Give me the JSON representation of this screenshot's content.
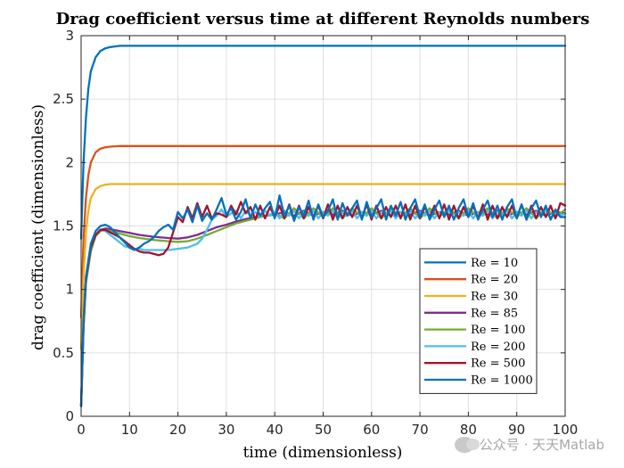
{
  "chart_data": {
    "type": "line",
    "title": "Drag coefficient versus time at different Reynolds numbers",
    "xlabel": "time (dimensionless)",
    "ylabel": "drag coefficient (dimensionless)",
    "xlim": [
      0,
      100
    ],
    "ylim": [
      0,
      3
    ],
    "xticks": [
      0,
      10,
      20,
      30,
      40,
      50,
      60,
      70,
      80,
      90,
      100
    ],
    "xtick_labels": [
      "0",
      "10",
      "20",
      "30",
      "40",
      "50",
      "60",
      "70",
      "80",
      "90",
      "100"
    ],
    "yticks": [
      0,
      0.5,
      1,
      1.5,
      2,
      2.5,
      3
    ],
    "ytick_labels": [
      "0",
      "0.5",
      "1",
      "1.5",
      "2",
      "2.5",
      "3"
    ],
    "grid": true,
    "legend_position": "lower-right",
    "series": [
      {
        "name": "Re = 10",
        "color": "#0072BD",
        "x": [
          0,
          0.5,
          1,
          1.5,
          2,
          3,
          4,
          5,
          6,
          7,
          8,
          10,
          100
        ],
        "y": [
          1.4,
          2.0,
          2.35,
          2.58,
          2.72,
          2.83,
          2.88,
          2.9,
          2.91,
          2.915,
          2.92,
          2.92,
          2.92
        ]
      },
      {
        "name": "Re = 20",
        "color": "#D95319",
        "x": [
          0,
          0.5,
          1,
          1.5,
          2,
          3,
          4,
          5,
          6,
          8,
          10,
          100
        ],
        "y": [
          0.78,
          1.4,
          1.72,
          1.9,
          2.0,
          2.08,
          2.11,
          2.12,
          2.125,
          2.13,
          2.13,
          2.13
        ]
      },
      {
        "name": "Re = 30",
        "color": "#EDB120",
        "x": [
          0,
          0.5,
          1,
          1.5,
          2,
          3,
          4,
          5,
          6,
          8,
          10,
          100
        ],
        "y": [
          0.53,
          1.1,
          1.45,
          1.62,
          1.72,
          1.79,
          1.815,
          1.825,
          1.83,
          1.83,
          1.83,
          1.83
        ]
      },
      {
        "name": "Re = 85",
        "color": "#7E2F8E",
        "x": [
          0,
          0.5,
          1,
          2,
          3,
          4,
          5,
          6,
          8,
          10,
          12,
          15,
          18,
          20,
          22,
          24,
          26,
          28,
          30,
          32,
          34,
          36,
          38,
          40,
          42,
          44,
          46,
          48,
          50,
          52,
          54,
          56,
          58,
          60,
          62,
          64,
          66,
          68,
          70,
          72,
          74,
          76,
          78,
          80,
          82,
          84,
          86,
          88,
          90,
          92,
          94,
          96,
          98,
          100
        ],
        "y": [
          0.08,
          0.7,
          1.05,
          1.32,
          1.43,
          1.47,
          1.48,
          1.475,
          1.46,
          1.445,
          1.43,
          1.415,
          1.405,
          1.4,
          1.41,
          1.43,
          1.46,
          1.49,
          1.51,
          1.535,
          1.555,
          1.57,
          1.58,
          1.59,
          1.61,
          1.58,
          1.62,
          1.58,
          1.61,
          1.59,
          1.62,
          1.58,
          1.61,
          1.59,
          1.62,
          1.58,
          1.61,
          1.59,
          1.62,
          1.58,
          1.61,
          1.59,
          1.62,
          1.58,
          1.61,
          1.59,
          1.62,
          1.58,
          1.61,
          1.59,
          1.62,
          1.58,
          1.61,
          1.6
        ]
      },
      {
        "name": "Re = 100",
        "color": "#77AC30",
        "x": [
          0,
          0.5,
          1,
          2,
          3,
          4,
          5,
          6,
          8,
          10,
          12,
          15,
          18,
          20,
          22,
          24,
          26,
          28,
          30,
          32,
          34,
          36,
          38,
          40,
          42,
          44,
          46,
          48,
          50,
          52,
          54,
          56,
          58,
          60,
          62,
          64,
          66,
          68,
          70,
          72,
          74,
          76,
          78,
          80,
          82,
          84,
          86,
          88,
          90,
          92,
          94,
          96,
          98,
          100
        ],
        "y": [
          0.08,
          0.7,
          1.05,
          1.3,
          1.42,
          1.46,
          1.47,
          1.46,
          1.44,
          1.42,
          1.405,
          1.39,
          1.38,
          1.375,
          1.38,
          1.4,
          1.43,
          1.46,
          1.49,
          1.52,
          1.54,
          1.56,
          1.58,
          1.6,
          1.56,
          1.64,
          1.56,
          1.64,
          1.57,
          1.64,
          1.56,
          1.64,
          1.57,
          1.64,
          1.56,
          1.64,
          1.57,
          1.64,
          1.56,
          1.64,
          1.57,
          1.64,
          1.56,
          1.64,
          1.57,
          1.64,
          1.56,
          1.64,
          1.57,
          1.64,
          1.56,
          1.64,
          1.57,
          1.63
        ]
      },
      {
        "name": "Re = 200",
        "color": "#4DBEEE",
        "x": [
          0,
          0.5,
          1,
          2,
          3,
          4,
          5,
          6,
          7,
          8,
          9,
          10,
          11,
          12,
          13,
          14,
          15,
          16,
          17,
          18,
          20,
          22,
          24,
          25,
          26,
          27,
          28,
          29,
          30,
          31,
          32,
          33,
          34,
          35,
          36,
          37,
          38,
          39,
          40,
          41,
          42,
          43,
          44,
          45,
          46,
          47,
          48,
          49,
          50,
          51,
          52,
          53,
          54,
          55,
          56,
          57,
          58,
          59,
          60,
          61,
          62,
          63,
          64,
          65,
          66,
          67,
          68,
          69,
          70,
          71,
          72,
          73,
          74,
          75,
          76,
          77,
          78,
          79,
          80,
          81,
          82,
          83,
          84,
          85,
          86,
          87,
          88,
          89,
          90,
          91,
          92,
          93,
          94,
          95,
          96,
          97,
          98,
          99,
          100
        ],
        "y": [
          0.08,
          0.72,
          1.08,
          1.33,
          1.43,
          1.47,
          1.46,
          1.43,
          1.4,
          1.37,
          1.34,
          1.33,
          1.32,
          1.32,
          1.31,
          1.31,
          1.31,
          1.31,
          1.31,
          1.31,
          1.32,
          1.33,
          1.36,
          1.4,
          1.47,
          1.55,
          1.58,
          1.63,
          1.57,
          1.6,
          1.62,
          1.56,
          1.62,
          1.58,
          1.61,
          1.57,
          1.62,
          1.58,
          1.61,
          1.56,
          1.62,
          1.58,
          1.62,
          1.56,
          1.61,
          1.58,
          1.62,
          1.56,
          1.61,
          1.58,
          1.62,
          1.56,
          1.61,
          1.58,
          1.62,
          1.56,
          1.61,
          1.58,
          1.62,
          1.56,
          1.61,
          1.58,
          1.62,
          1.56,
          1.61,
          1.58,
          1.62,
          1.56,
          1.61,
          1.58,
          1.62,
          1.56,
          1.61,
          1.58,
          1.62,
          1.56,
          1.61,
          1.58,
          1.62,
          1.56,
          1.61,
          1.58,
          1.62,
          1.56,
          1.61,
          1.58,
          1.62,
          1.56,
          1.61,
          1.58,
          1.62,
          1.56,
          1.61,
          1.58,
          1.62,
          1.56,
          1.61,
          1.58,
          1.6
        ]
      },
      {
        "name": "Re = 500",
        "color": "#A2142F",
        "x": [
          0,
          0.5,
          1,
          2,
          3,
          4,
          5,
          6,
          7,
          8,
          9,
          10,
          11,
          12,
          13,
          14,
          15,
          16,
          17,
          18,
          19,
          20,
          21,
          22,
          23,
          24,
          25,
          26,
          27,
          28,
          29,
          30,
          31,
          32,
          33,
          34,
          35,
          36,
          37,
          38,
          39,
          40,
          41,
          42,
          43,
          44,
          45,
          46,
          47,
          48,
          49,
          50,
          51,
          52,
          53,
          54,
          55,
          56,
          57,
          58,
          59,
          60,
          61,
          62,
          63,
          64,
          65,
          66,
          67,
          68,
          69,
          70,
          71,
          72,
          73,
          74,
          75,
          76,
          77,
          78,
          79,
          80,
          81,
          82,
          83,
          84,
          85,
          86,
          87,
          88,
          89,
          90,
          91,
          92,
          93,
          94,
          95,
          96,
          97,
          98,
          99,
          100
        ],
        "y": [
          0.08,
          0.72,
          1.08,
          1.33,
          1.43,
          1.47,
          1.47,
          1.45,
          1.43,
          1.41,
          1.38,
          1.35,
          1.32,
          1.3,
          1.29,
          1.29,
          1.28,
          1.27,
          1.28,
          1.33,
          1.45,
          1.57,
          1.53,
          1.65,
          1.56,
          1.68,
          1.57,
          1.66,
          1.56,
          1.6,
          1.59,
          1.57,
          1.66,
          1.59,
          1.69,
          1.6,
          1.65,
          1.55,
          1.66,
          1.56,
          1.65,
          1.57,
          1.66,
          1.56,
          1.67,
          1.55,
          1.66,
          1.56,
          1.65,
          1.57,
          1.66,
          1.56,
          1.67,
          1.55,
          1.66,
          1.56,
          1.65,
          1.57,
          1.66,
          1.56,
          1.67,
          1.55,
          1.66,
          1.56,
          1.65,
          1.57,
          1.66,
          1.56,
          1.67,
          1.55,
          1.66,
          1.56,
          1.65,
          1.57,
          1.66,
          1.56,
          1.67,
          1.55,
          1.66,
          1.56,
          1.65,
          1.57,
          1.66,
          1.56,
          1.67,
          1.55,
          1.66,
          1.56,
          1.65,
          1.57,
          1.66,
          1.56,
          1.67,
          1.55,
          1.66,
          1.56,
          1.65,
          1.57,
          1.66,
          1.56,
          1.68,
          1.66
        ]
      },
      {
        "name": "Re = 1000",
        "color": "#0072BD",
        "x": [
          0,
          0.5,
          1,
          2,
          3,
          4,
          5,
          6,
          7,
          8,
          9,
          10,
          11,
          12,
          13,
          14,
          15,
          16,
          17,
          18,
          19,
          20,
          21,
          22,
          23,
          24,
          25,
          26,
          27,
          28,
          29,
          30,
          31,
          32,
          33,
          34,
          35,
          36,
          37,
          38,
          39,
          40,
          41,
          42,
          43,
          44,
          45,
          46,
          47,
          48,
          49,
          50,
          51,
          52,
          53,
          54,
          55,
          56,
          57,
          58,
          59,
          60,
          61,
          62,
          63,
          64,
          65,
          66,
          67,
          68,
          69,
          70,
          71,
          72,
          73,
          74,
          75,
          76,
          77,
          78,
          79,
          80,
          81,
          82,
          83,
          84,
          85,
          86,
          87,
          88,
          89,
          90,
          91,
          92,
          93,
          94,
          95,
          96,
          97,
          98,
          99,
          100
        ],
        "y": [
          0.08,
          0.75,
          1.1,
          1.36,
          1.46,
          1.5,
          1.51,
          1.49,
          1.45,
          1.41,
          1.37,
          1.33,
          1.31,
          1.33,
          1.36,
          1.38,
          1.41,
          1.46,
          1.49,
          1.51,
          1.47,
          1.61,
          1.56,
          1.63,
          1.53,
          1.66,
          1.54,
          1.6,
          1.55,
          1.63,
          1.72,
          1.59,
          1.64,
          1.55,
          1.61,
          1.71,
          1.56,
          1.67,
          1.58,
          1.64,
          1.69,
          1.56,
          1.74,
          1.58,
          1.66,
          1.54,
          1.65,
          1.58,
          1.7,
          1.55,
          1.67,
          1.57,
          1.62,
          1.71,
          1.55,
          1.68,
          1.58,
          1.64,
          1.7,
          1.55,
          1.69,
          1.57,
          1.64,
          1.71,
          1.55,
          1.66,
          1.58,
          1.69,
          1.55,
          1.64,
          1.71,
          1.57,
          1.67,
          1.55,
          1.63,
          1.7,
          1.57,
          1.66,
          1.55,
          1.64,
          1.71,
          1.57,
          1.68,
          1.55,
          1.63,
          1.7,
          1.57,
          1.66,
          1.55,
          1.65,
          1.71,
          1.56,
          1.67,
          1.55,
          1.64,
          1.7,
          1.57,
          1.66,
          1.55,
          1.63,
          1.57,
          1.57
        ]
      }
    ]
  },
  "watermark": {
    "text": "公众号 · 天天Matlab",
    "icon": "wechat-icon"
  }
}
